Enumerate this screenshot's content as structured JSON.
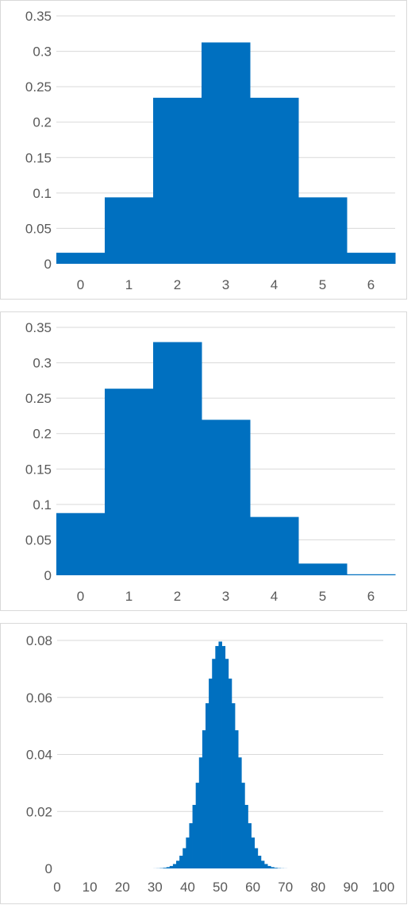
{
  "colors": {
    "bar": "#0070c0",
    "grid": "#d9d9d9",
    "text": "#595959"
  },
  "chart_data": [
    {
      "type": "bar",
      "title": "",
      "xlabel": "",
      "ylabel": "",
      "categories": [
        "0",
        "1",
        "2",
        "3",
        "4",
        "5",
        "6"
      ],
      "values": [
        0.0156,
        0.0938,
        0.2344,
        0.3125,
        0.2344,
        0.0938,
        0.0156
      ],
      "ylim": [
        0,
        0.35
      ],
      "yticks": [
        "0",
        "0.05",
        "0.1",
        "0.15",
        "0.2",
        "0.25",
        "0.3",
        "0.35"
      ],
      "grid": true,
      "legend": "none"
    },
    {
      "type": "bar",
      "title": "",
      "xlabel": "",
      "ylabel": "",
      "categories": [
        "0",
        "1",
        "2",
        "3",
        "4",
        "5",
        "6"
      ],
      "values": [
        0.0878,
        0.2634,
        0.3292,
        0.2195,
        0.0823,
        0.0165,
        0.0014
      ],
      "ylim": [
        0,
        0.35
      ],
      "yticks": [
        "0",
        "0.05",
        "0.1",
        "0.15",
        "0.2",
        "0.25",
        "0.3",
        "0.35"
      ],
      "grid": true,
      "legend": "none"
    },
    {
      "type": "bar",
      "title": "",
      "xlabel": "",
      "ylabel": "",
      "x_start": 0,
      "x_end": 100,
      "distribution": "binomial",
      "n": 100,
      "p": 0.5,
      "ylim": [
        0,
        0.08
      ],
      "yticks": [
        "0",
        "0.02",
        "0.04",
        "0.06",
        "0.08"
      ],
      "xticks": [
        "0",
        "10",
        "20",
        "30",
        "40",
        "50",
        "60",
        "70",
        "80",
        "90",
        "100"
      ],
      "grid": true,
      "legend": "none"
    }
  ]
}
